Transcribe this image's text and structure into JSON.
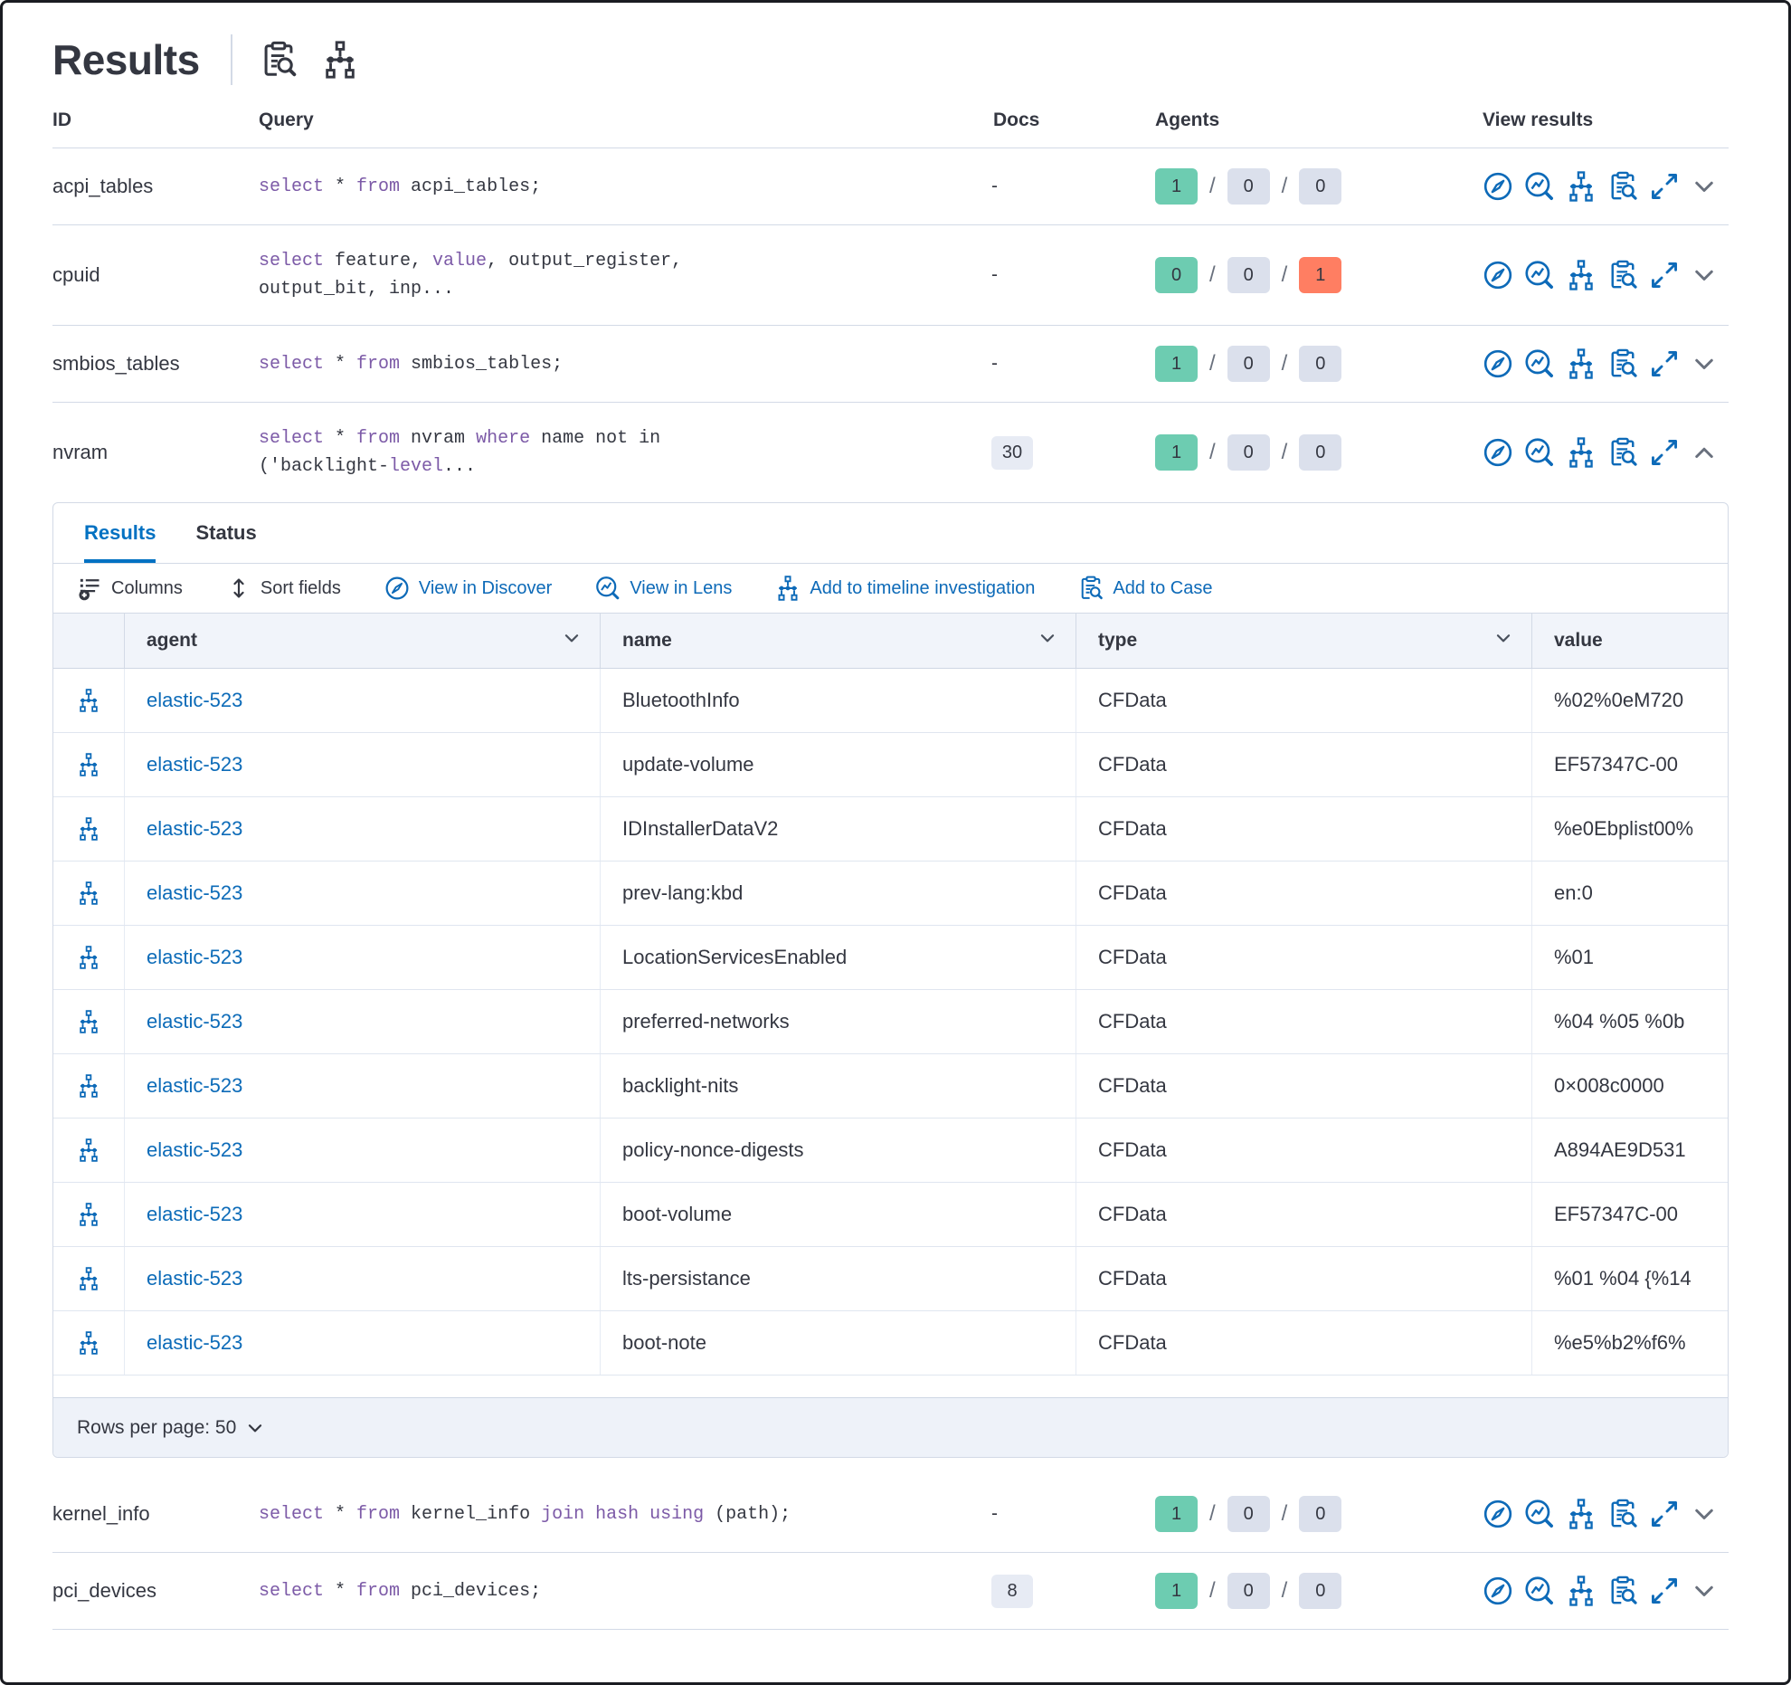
{
  "page": {
    "title": "Results"
  },
  "table": {
    "headers": {
      "id": "ID",
      "query": "Query",
      "docs": "Docs",
      "agents": "Agents",
      "view_results": "View results"
    },
    "rows": [
      {
        "id": "acpi_tables",
        "query": [
          [
            "select",
            1
          ],
          [
            " * ",
            0
          ],
          [
            "from",
            1
          ],
          [
            " acpi_tables;",
            0
          ]
        ],
        "docs": "-",
        "agents": {
          "success": "1",
          "pending": "0",
          "failed": "0"
        }
      },
      {
        "id": "cpuid",
        "query": [
          [
            "select",
            1
          ],
          [
            " feature, ",
            0
          ],
          [
            "value",
            1
          ],
          [
            ", output_register,\noutput_bit, inp...",
            0
          ]
        ],
        "docs": "-",
        "agents": {
          "success": "0",
          "pending": "0",
          "failed": "1"
        }
      },
      {
        "id": "smbios_tables",
        "query": [
          [
            "select",
            1
          ],
          [
            " * ",
            0
          ],
          [
            "from",
            1
          ],
          [
            " smbios_tables;",
            0
          ]
        ],
        "docs": "-",
        "agents": {
          "success": "1",
          "pending": "0",
          "failed": "0"
        }
      },
      {
        "id": "nvram",
        "query": [
          [
            "select",
            1
          ],
          [
            " * ",
            0
          ],
          [
            "from",
            1
          ],
          [
            " nvram ",
            0
          ],
          [
            "where",
            1
          ],
          [
            " name not in\n('backlight-",
            0
          ],
          [
            "level",
            1
          ],
          [
            "...",
            0
          ]
        ],
        "docs": "30",
        "agents": {
          "success": "1",
          "pending": "0",
          "failed": "0"
        }
      },
      {
        "id": "kernel_info",
        "query": [
          [
            "select",
            1
          ],
          [
            " * ",
            0
          ],
          [
            "from",
            1
          ],
          [
            " kernel_info ",
            0
          ],
          [
            "join",
            1
          ],
          [
            " ",
            0
          ],
          [
            "hash",
            1
          ],
          [
            " ",
            0
          ],
          [
            "using",
            1
          ],
          [
            " (path);",
            0
          ]
        ],
        "docs": "-",
        "agents": {
          "success": "1",
          "pending": "0",
          "failed": "0"
        }
      },
      {
        "id": "pci_devices",
        "query": [
          [
            "select",
            1
          ],
          [
            " * ",
            0
          ],
          [
            "from",
            1
          ],
          [
            " pci_devices;",
            0
          ]
        ],
        "docs": "8",
        "agents": {
          "success": "1",
          "pending": "0",
          "failed": "0"
        }
      }
    ]
  },
  "panel": {
    "tabs": {
      "results": "Results",
      "status": "Status"
    },
    "toolbar": {
      "columns": "Columns",
      "sort_fields": "Sort fields",
      "view_in_discover": "View in Discover",
      "view_in_lens": "View in Lens",
      "add_to_timeline": "Add to timeline investigation",
      "add_to_case": "Add to Case"
    },
    "grid": {
      "headers": {
        "agent": "agent",
        "name": "name",
        "type": "type",
        "value": "value"
      },
      "rows": [
        {
          "agent": "elastic-523",
          "name": "BluetoothInfo",
          "type": "CFData",
          "value": "%02%0eM720"
        },
        {
          "agent": "elastic-523",
          "name": "update-volume",
          "type": "CFData",
          "value": "EF57347C-00"
        },
        {
          "agent": "elastic-523",
          "name": "IDInstallerDataV2",
          "type": "CFData",
          "value": "%e0Ebplist00%"
        },
        {
          "agent": "elastic-523",
          "name": "prev-lang:kbd",
          "type": "CFData",
          "value": "en:0"
        },
        {
          "agent": "elastic-523",
          "name": "LocationServicesEnabled",
          "type": "CFData",
          "value": "%01"
        },
        {
          "agent": "elastic-523",
          "name": "preferred-networks",
          "type": "CFData",
          "value": "%04 %05 %0b"
        },
        {
          "agent": "elastic-523",
          "name": "backlight-nits",
          "type": "CFData",
          "value": "0×008c0000"
        },
        {
          "agent": "elastic-523",
          "name": "policy-nonce-digests",
          "type": "CFData",
          "value": "A894AE9D531"
        },
        {
          "agent": "elastic-523",
          "name": "boot-volume",
          "type": "CFData",
          "value": "EF57347C-00"
        },
        {
          "agent": "elastic-523",
          "name": "lts-persistance",
          "type": "CFData",
          "value": "%01 %04 {%14"
        },
        {
          "agent": "elastic-523",
          "name": "boot-note",
          "type": "CFData",
          "value": "%e5%b2%f6%"
        }
      ],
      "footer": {
        "rows_per_page": "Rows per page: 50"
      }
    }
  },
  "colors": {
    "link_blue": "#0d6ab8",
    "active_tab_blue": "#0071c2",
    "keyword_purple": "#7c5aa7",
    "badge_success": "#6dccb1",
    "badge_danger": "#ff7e62",
    "badge_neutral": "#dbe0ec",
    "border": "#d3dae6",
    "text": "#343741"
  }
}
